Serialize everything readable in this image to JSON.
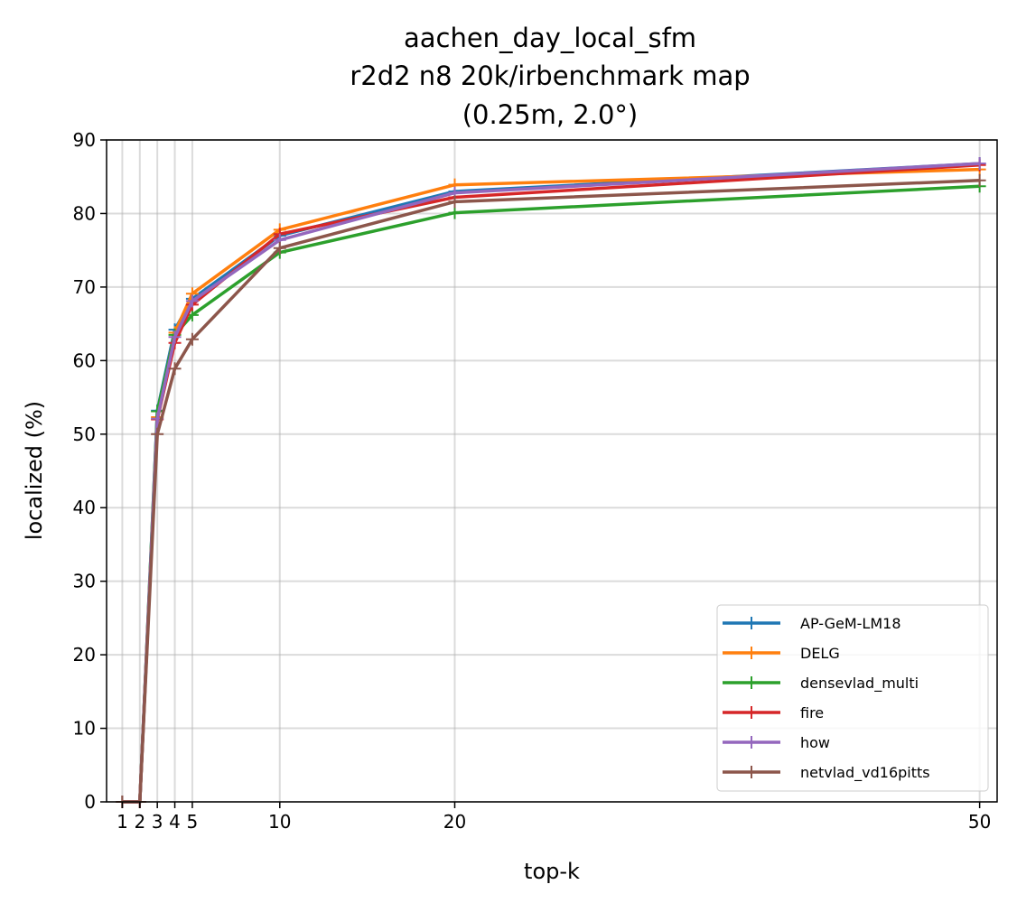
{
  "chart_data": {
    "type": "line",
    "title_lines": [
      "aachen_day_local_sfm",
      "r2d2 n8 20k/irbenchmark map",
      "(0.25m, 2.0°)"
    ],
    "xlabel": "top-k",
    "ylabel": "localized (%)",
    "x": [
      1,
      2,
      3,
      4,
      5,
      10,
      20,
      50
    ],
    "xticks": [
      1,
      2,
      3,
      4,
      5,
      10,
      20,
      50
    ],
    "xtick_labels": [
      "1",
      "2",
      "3",
      "4",
      "5",
      "10",
      "20",
      "50"
    ],
    "xlim": [
      0.1,
      51
    ],
    "ylim": [
      0,
      90
    ],
    "yticks": [
      0,
      10,
      20,
      30,
      40,
      50,
      60,
      70,
      80,
      90
    ],
    "ytick_labels": [
      "0",
      "10",
      "20",
      "30",
      "40",
      "50",
      "60",
      "70",
      "80",
      "90"
    ],
    "grid": true,
    "legend_position": "lower-right",
    "marker": "+",
    "series": [
      {
        "name": "AP-GeM-LM18",
        "color": "#1f77b4",
        "values": [
          0,
          0,
          53.2,
          64.2,
          68.4,
          77.0,
          83.0,
          86.8
        ]
      },
      {
        "name": "DELG",
        "color": "#ff7f0e",
        "values": [
          0,
          0,
          52.3,
          63.8,
          69.1,
          77.8,
          83.9,
          86.0
        ]
      },
      {
        "name": "densevlad_multi",
        "color": "#2ca02c",
        "values": [
          0,
          0,
          53.1,
          63.5,
          66.2,
          74.7,
          80.1,
          83.7
        ]
      },
      {
        "name": "fire",
        "color": "#d62728",
        "values": [
          0,
          0,
          52.0,
          62.4,
          67.6,
          77.2,
          82.2,
          86.6
        ]
      },
      {
        "name": "how",
        "color": "#9467bd",
        "values": [
          0,
          0,
          52.1,
          63.2,
          68.1,
          76.4,
          82.8,
          86.8
        ]
      },
      {
        "name": "netvlad_vd16pitts",
        "color": "#8c564b",
        "values": [
          0,
          0,
          50.0,
          58.9,
          62.9,
          75.3,
          81.6,
          84.5
        ]
      }
    ]
  }
}
